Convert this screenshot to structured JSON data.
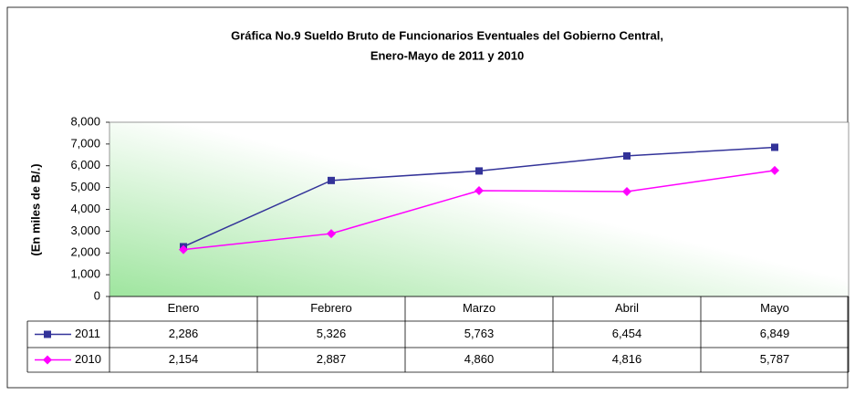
{
  "chart_data": {
    "type": "line",
    "title": "Gráfica No.9 Sueldo Bruto de Funcionarios Eventuales del Gobierno Central,",
    "subtitle": "Enero-Mayo de 2011 y 2010",
    "y_label": "(En miles de B/.)",
    "categories": [
      "Enero",
      "Febrero",
      "Marzo",
      "Abril",
      "Mayo"
    ],
    "series": [
      {
        "name": "2011",
        "color": "#333399",
        "marker": "square",
        "values": [
          2286,
          5326,
          5763,
          6454,
          6849
        ],
        "value_labels": [
          "2,286",
          "5,326",
          "5,763",
          "6,454",
          "6,849"
        ]
      },
      {
        "name": "2010",
        "color": "#ff00ff",
        "marker": "diamond",
        "values": [
          2154,
          2887,
          4860,
          4816,
          5787
        ],
        "value_labels": [
          "2,154",
          "2,887",
          "4,860",
          "4,816",
          "5,787"
        ]
      }
    ],
    "ylim": [
      0,
      8000
    ],
    "yticks": [
      0,
      {
        "value": 1000,
        "label": "1,000"
      },
      {
        "value": 2000,
        "label": "2,000"
      },
      {
        "value": 3000,
        "label": "3,000"
      },
      {
        "value": 4000,
        "label": "4,000"
      },
      {
        "value": 5000,
        "label": "5,000"
      },
      {
        "value": 6000,
        "label": "6,000"
      },
      {
        "value": 7000,
        "label": "7,000"
      },
      {
        "value": 8000,
        "label": "8,000"
      }
    ]
  }
}
